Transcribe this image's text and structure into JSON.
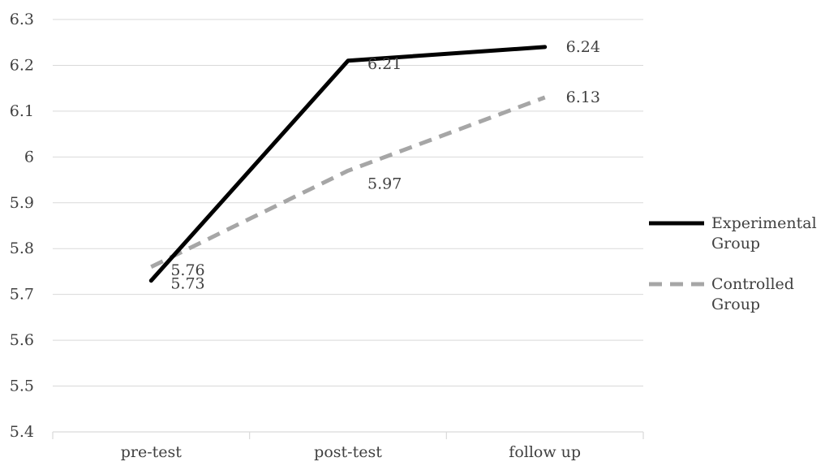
{
  "chart_data": {
    "type": "line",
    "title": "",
    "xlabel": "",
    "ylabel": "",
    "categories": [
      "pre-test",
      "post-test",
      "follow up"
    ],
    "ylim": [
      5.4,
      6.3
    ],
    "yticks": [
      "5.4",
      "5.5",
      "5.6",
      "5.7",
      "5.8",
      "5.9",
      "6",
      "6.1",
      "6.2",
      "6.3"
    ],
    "grid": "horizontal",
    "legend_position": "right",
    "series": [
      {
        "name": "Experimental Group",
        "name_lines": [
          "Experimental",
          "Group"
        ],
        "values": [
          5.73,
          6.21,
          6.24
        ],
        "labels": [
          "5.73",
          "6.21",
          "6.24"
        ],
        "color": "#000000",
        "style": "solid"
      },
      {
        "name": "Controlled Group",
        "name_lines": [
          "Controlled",
          "Group"
        ],
        "values": [
          5.76,
          5.97,
          6.13
        ],
        "labels": [
          "5.76",
          "5.97",
          "6.13"
        ],
        "color": "#a6a6a6",
        "style": "dashed"
      }
    ]
  }
}
